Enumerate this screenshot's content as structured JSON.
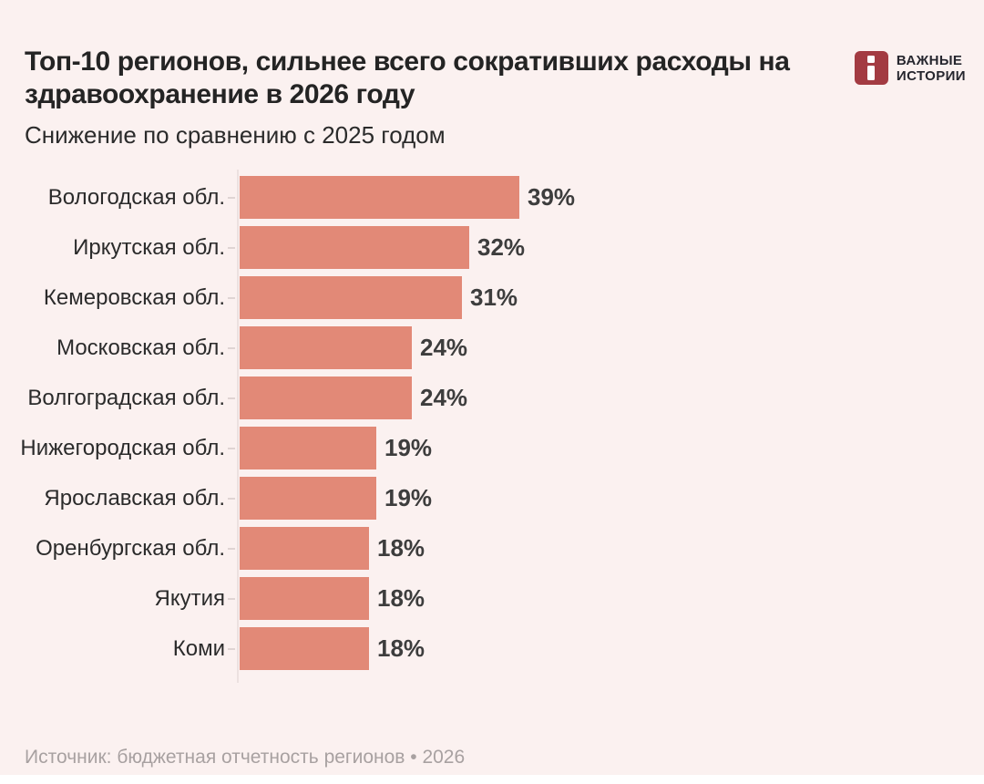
{
  "logo": {
    "line1": "ВАЖНЫЕ",
    "line2": "ИСТОРИИ",
    "icon": "i-mark-icon",
    "brand_color": "#A33B42"
  },
  "title": "Топ-10 регионов, сильнее всего сокративших расходы на здравоохранение в 2026 году",
  "subtitle": "Снижение по сравнению с 2025 годом",
  "source": "Источник: бюджетная отчетность регионов • 2026",
  "colors": {
    "background": "#FBF1F0",
    "bar": "#E28977",
    "title_text": "#242424",
    "category_text": "#2B2B2B",
    "value_text": "#3D3D3D",
    "source_text": "#A8A1A1",
    "axis_line": "#ECE1E0"
  },
  "chart_data": {
    "type": "bar",
    "orientation": "horizontal",
    "title": "Топ-10 регионов, сильнее всего сокративших расходы на здравоохранение в 2026 году",
    "subtitle": "Снижение по сравнению с 2025 годом",
    "categories": [
      "Вологодская обл.",
      "Иркутская обл.",
      "Кемеровская обл.",
      "Московская обл.",
      "Волгоградская обл.",
      "Нижегородская обл.",
      "Ярославская обл.",
      "Оренбургская обл.",
      "Якутия",
      "Коми"
    ],
    "values": [
      39,
      32,
      31,
      24,
      24,
      19,
      19,
      18,
      18,
      18
    ],
    "value_suffix": "%",
    "xlabel": "",
    "ylabel": "",
    "xlim": [
      0,
      40
    ],
    "grid": false,
    "legend": false,
    "data_labels": true
  }
}
